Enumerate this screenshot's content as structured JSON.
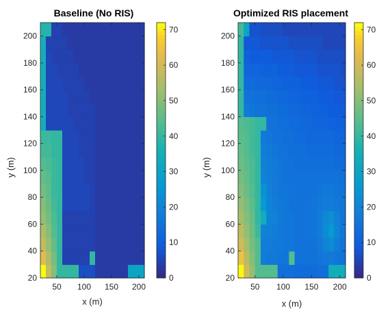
{
  "chart_data": [
    {
      "type": "heatmap",
      "title": "Baseline (No RIS)",
      "xlabel": "x (m)",
      "ylabel": "y (m)",
      "xlim": [
        20,
        210
      ],
      "ylim": [
        20,
        210
      ],
      "xticks": [
        50,
        100,
        150,
        200
      ],
      "yticks": [
        20,
        40,
        60,
        80,
        100,
        120,
        140,
        160,
        180,
        200
      ],
      "color_range": [
        0,
        72
      ],
      "colorbar_ticks": [
        0,
        10,
        20,
        30,
        40,
        50,
        60,
        70
      ],
      "colormap": "parula",
      "x_centers": [
        25,
        35,
        45,
        55,
        65,
        75,
        85,
        95,
        105,
        115,
        125,
        135,
        145,
        155,
        165,
        175,
        185,
        195,
        205
      ],
      "y_centers": [
        25,
        35,
        45,
        55,
        65,
        75,
        85,
        95,
        105,
        115,
        125,
        135,
        145,
        155,
        165,
        175,
        185,
        195,
        205
      ],
      "z": [
        [
          72,
          58,
          50,
          40,
          40,
          40,
          40,
          6,
          6,
          6,
          3,
          3,
          3,
          3,
          3,
          3,
          30,
          30,
          30
        ],
        [
          63,
          55,
          48,
          40,
          4,
          4,
          4,
          4,
          4,
          40,
          3,
          3,
          3,
          3,
          3,
          3,
          3,
          3,
          3
        ],
        [
          58,
          52,
          46,
          40,
          4,
          4,
          4,
          4,
          4,
          4,
          3,
          3,
          3,
          3,
          3,
          3,
          3,
          3,
          3
        ],
        [
          55,
          50,
          44,
          40,
          4,
          4,
          4,
          4,
          4,
          4,
          3,
          3,
          3,
          3,
          3,
          3,
          3,
          3,
          3
        ],
        [
          52,
          48,
          43,
          40,
          4,
          4,
          4,
          4,
          4,
          4,
          3,
          3,
          3,
          3,
          3,
          3,
          3,
          3,
          3
        ],
        [
          50,
          46,
          42,
          40,
          5,
          5,
          5,
          5,
          5,
          4,
          3,
          3,
          3,
          3,
          3,
          3,
          3,
          3,
          3
        ],
        [
          48,
          45,
          41,
          40,
          5,
          5,
          5,
          5,
          5,
          4,
          3,
          3,
          3,
          3,
          3,
          3,
          3,
          3,
          3
        ],
        [
          46,
          44,
          41,
          40,
          5,
          5,
          5,
          5,
          4,
          4,
          3,
          3,
          3,
          3,
          3,
          3,
          3,
          3,
          3
        ],
        [
          44,
          43,
          41,
          40,
          5,
          5,
          5,
          5,
          4,
          4,
          3,
          3,
          3,
          3,
          3,
          3,
          3,
          3,
          3
        ],
        [
          42,
          42,
          40,
          40,
          5,
          5,
          5,
          4,
          4,
          4,
          3,
          3,
          3,
          3,
          3,
          3,
          3,
          3,
          3
        ],
        [
          41,
          41,
          40,
          40,
          5,
          5,
          5,
          4,
          4,
          4,
          3,
          3,
          3,
          3,
          3,
          3,
          3,
          3,
          3
        ],
        [
          35,
          5,
          5,
          5,
          5,
          5,
          4,
          4,
          4,
          4,
          3,
          3,
          3,
          3,
          3,
          3,
          3,
          3,
          3
        ],
        [
          35,
          5,
          5,
          5,
          5,
          4,
          4,
          4,
          4,
          4,
          3,
          3,
          3,
          3,
          3,
          3,
          3,
          3,
          3
        ],
        [
          35,
          5,
          5,
          5,
          5,
          4,
          4,
          4,
          4,
          3,
          3,
          3,
          3,
          3,
          3,
          3,
          3,
          3,
          3
        ],
        [
          35,
          5,
          5,
          5,
          4,
          4,
          4,
          4,
          3,
          3,
          3,
          3,
          3,
          3,
          3,
          3,
          3,
          3,
          3
        ],
        [
          35,
          5,
          5,
          4,
          4,
          4,
          4,
          3,
          3,
          3,
          3,
          3,
          3,
          3,
          3,
          3,
          3,
          3,
          3
        ],
        [
          35,
          5,
          4,
          4,
          4,
          4,
          3,
          3,
          3,
          3,
          3,
          3,
          3,
          3,
          3,
          3,
          3,
          3,
          3
        ],
        [
          35,
          4,
          4,
          4,
          4,
          3,
          3,
          3,
          3,
          3,
          3,
          3,
          3,
          3,
          3,
          3,
          3,
          3,
          3
        ],
        [
          38,
          38,
          4,
          4,
          3,
          3,
          3,
          3,
          3,
          3,
          3,
          3,
          3,
          3,
          3,
          3,
          3,
          3,
          3
        ]
      ]
    },
    {
      "type": "heatmap",
      "title": "Optimized RIS placement",
      "xlabel": "x (m)",
      "ylabel": "y (m)",
      "xlim": [
        20,
        210
      ],
      "ylim": [
        20,
        210
      ],
      "xticks": [
        50,
        100,
        150,
        200
      ],
      "yticks": [
        20,
        40,
        60,
        80,
        100,
        120,
        140,
        160,
        180,
        200
      ],
      "color_range": [
        0,
        72
      ],
      "colorbar_ticks": [
        0,
        10,
        20,
        30,
        40,
        50,
        60,
        70
      ],
      "colormap": "parula",
      "x_centers": [
        25,
        35,
        45,
        55,
        65,
        75,
        85,
        95,
        105,
        115,
        125,
        135,
        145,
        155,
        165,
        175,
        185,
        195,
        205
      ],
      "y_centers": [
        25,
        35,
        45,
        55,
        65,
        75,
        85,
        95,
        105,
        115,
        125,
        135,
        145,
        155,
        165,
        175,
        185,
        195,
        205
      ],
      "z": [
        [
          72,
          60,
          52,
          44,
          44,
          44,
          44,
          14,
          14,
          14,
          13,
          13,
          13,
          13,
          14,
          14,
          34,
          34,
          34
        ],
        [
          65,
          57,
          50,
          44,
          18,
          17,
          17,
          16,
          16,
          44,
          15,
          15,
          15,
          15,
          16,
          17,
          17,
          16,
          15
        ],
        [
          60,
          54,
          48,
          44,
          18,
          18,
          17,
          17,
          16,
          16,
          15,
          15,
          15,
          15,
          17,
          20,
          22,
          18,
          15
        ],
        [
          57,
          52,
          47,
          41,
          20,
          19,
          18,
          17,
          16,
          16,
          15,
          15,
          15,
          16,
          18,
          22,
          26,
          20,
          16
        ],
        [
          54,
          50,
          46,
          40,
          34,
          20,
          19,
          17,
          16,
          16,
          15,
          15,
          15,
          16,
          18,
          21,
          23,
          19,
          16
        ],
        [
          52,
          49,
          45,
          40,
          26,
          20,
          18,
          17,
          16,
          15,
          15,
          15,
          15,
          16,
          17,
          18,
          18,
          17,
          16
        ],
        [
          50,
          47,
          44,
          40,
          24,
          19,
          17,
          16,
          16,
          15,
          15,
          15,
          15,
          15,
          16,
          17,
          17,
          16,
          15
        ],
        [
          48,
          46,
          43,
          40,
          20,
          18,
          17,
          16,
          15,
          15,
          15,
          15,
          15,
          15,
          15,
          15,
          15,
          15,
          14
        ],
        [
          47,
          45,
          43,
          40,
          19,
          18,
          17,
          16,
          15,
          15,
          14,
          14,
          14,
          14,
          14,
          14,
          14,
          13,
          13
        ],
        [
          46,
          44,
          42,
          40,
          18,
          17,
          16,
          15,
          15,
          14,
          14,
          14,
          13,
          13,
          13,
          13,
          13,
          12,
          12
        ],
        [
          45,
          44,
          42,
          40,
          17,
          16,
          15,
          15,
          14,
          14,
          13,
          13,
          12,
          12,
          12,
          12,
          12,
          11,
          11
        ],
        [
          44,
          43,
          42,
          40,
          40,
          15,
          15,
          14,
          14,
          13,
          13,
          12,
          12,
          11,
          11,
          11,
          10,
          10,
          10
        ],
        [
          40,
          17,
          16,
          15,
          15,
          14,
          14,
          13,
          13,
          12,
          12,
          11,
          11,
          10,
          10,
          10,
          9,
          9,
          9
        ],
        [
          40,
          15,
          15,
          14,
          14,
          13,
          13,
          12,
          12,
          11,
          11,
          10,
          10,
          10,
          9,
          9,
          9,
          8,
          8
        ],
        [
          40,
          13,
          13,
          12,
          12,
          12,
          11,
          11,
          10,
          10,
          10,
          9,
          9,
          9,
          8,
          8,
          8,
          7,
          7
        ],
        [
          40,
          11,
          11,
          11,
          10,
          10,
          10,
          9,
          9,
          9,
          8,
          8,
          8,
          8,
          7,
          7,
          7,
          7,
          6
        ],
        [
          40,
          10,
          9,
          9,
          9,
          9,
          8,
          8,
          8,
          8,
          7,
          7,
          7,
          7,
          6,
          6,
          6,
          6,
          6
        ],
        [
          40,
          8,
          8,
          8,
          7,
          7,
          7,
          7,
          7,
          6,
          6,
          6,
          6,
          6,
          6,
          5,
          5,
          5,
          5
        ],
        [
          42,
          30,
          7,
          7,
          6,
          6,
          6,
          6,
          5,
          5,
          5,
          5,
          5,
          5,
          5,
          5,
          5,
          5,
          5
        ]
      ]
    }
  ]
}
